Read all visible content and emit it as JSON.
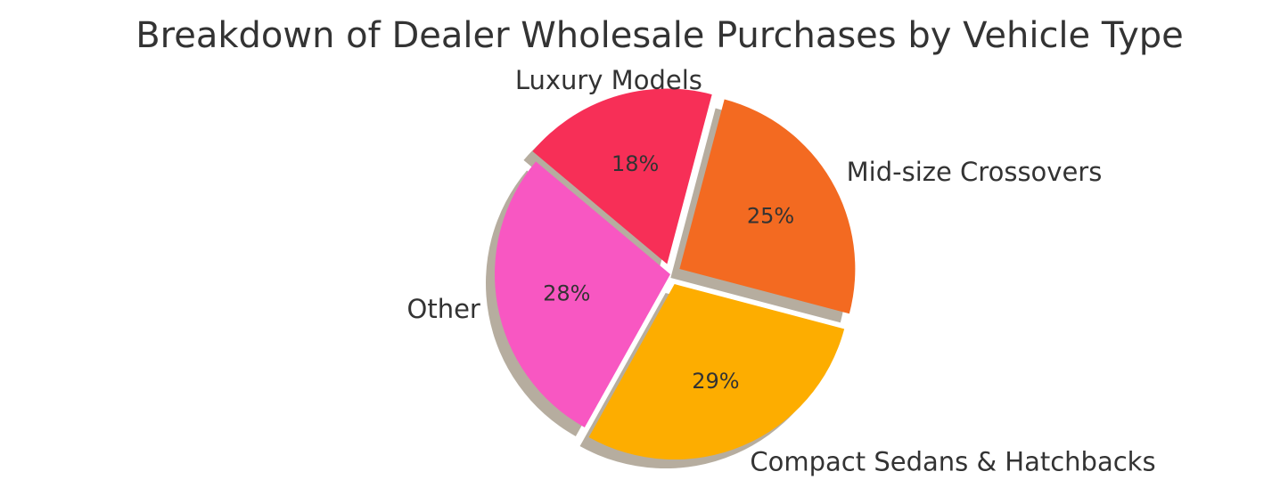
{
  "chart_data": {
    "type": "pie",
    "title": "Breakdown of Dealer Wholesale Purchases by Vehicle Type",
    "slices": [
      {
        "label": "Other",
        "value": 28,
        "pct_label": "28%",
        "color": "#f857c2",
        "explode": false
      },
      {
        "label": "Compact Sedans & Hatchbacks",
        "value": 29,
        "pct_label": "29%",
        "color": "#fdad00",
        "explode": true
      },
      {
        "label": "Mid-size Crossovers",
        "value": 25,
        "pct_label": "25%",
        "color": "#f36a21",
        "explode": true
      },
      {
        "label": "Luxury Models",
        "value": 18,
        "pct_label": "18%",
        "color": "#f72f57",
        "explode": true
      }
    ],
    "start_angle_deg": 140,
    "direction": "counterclockwise",
    "shadow": true
  }
}
